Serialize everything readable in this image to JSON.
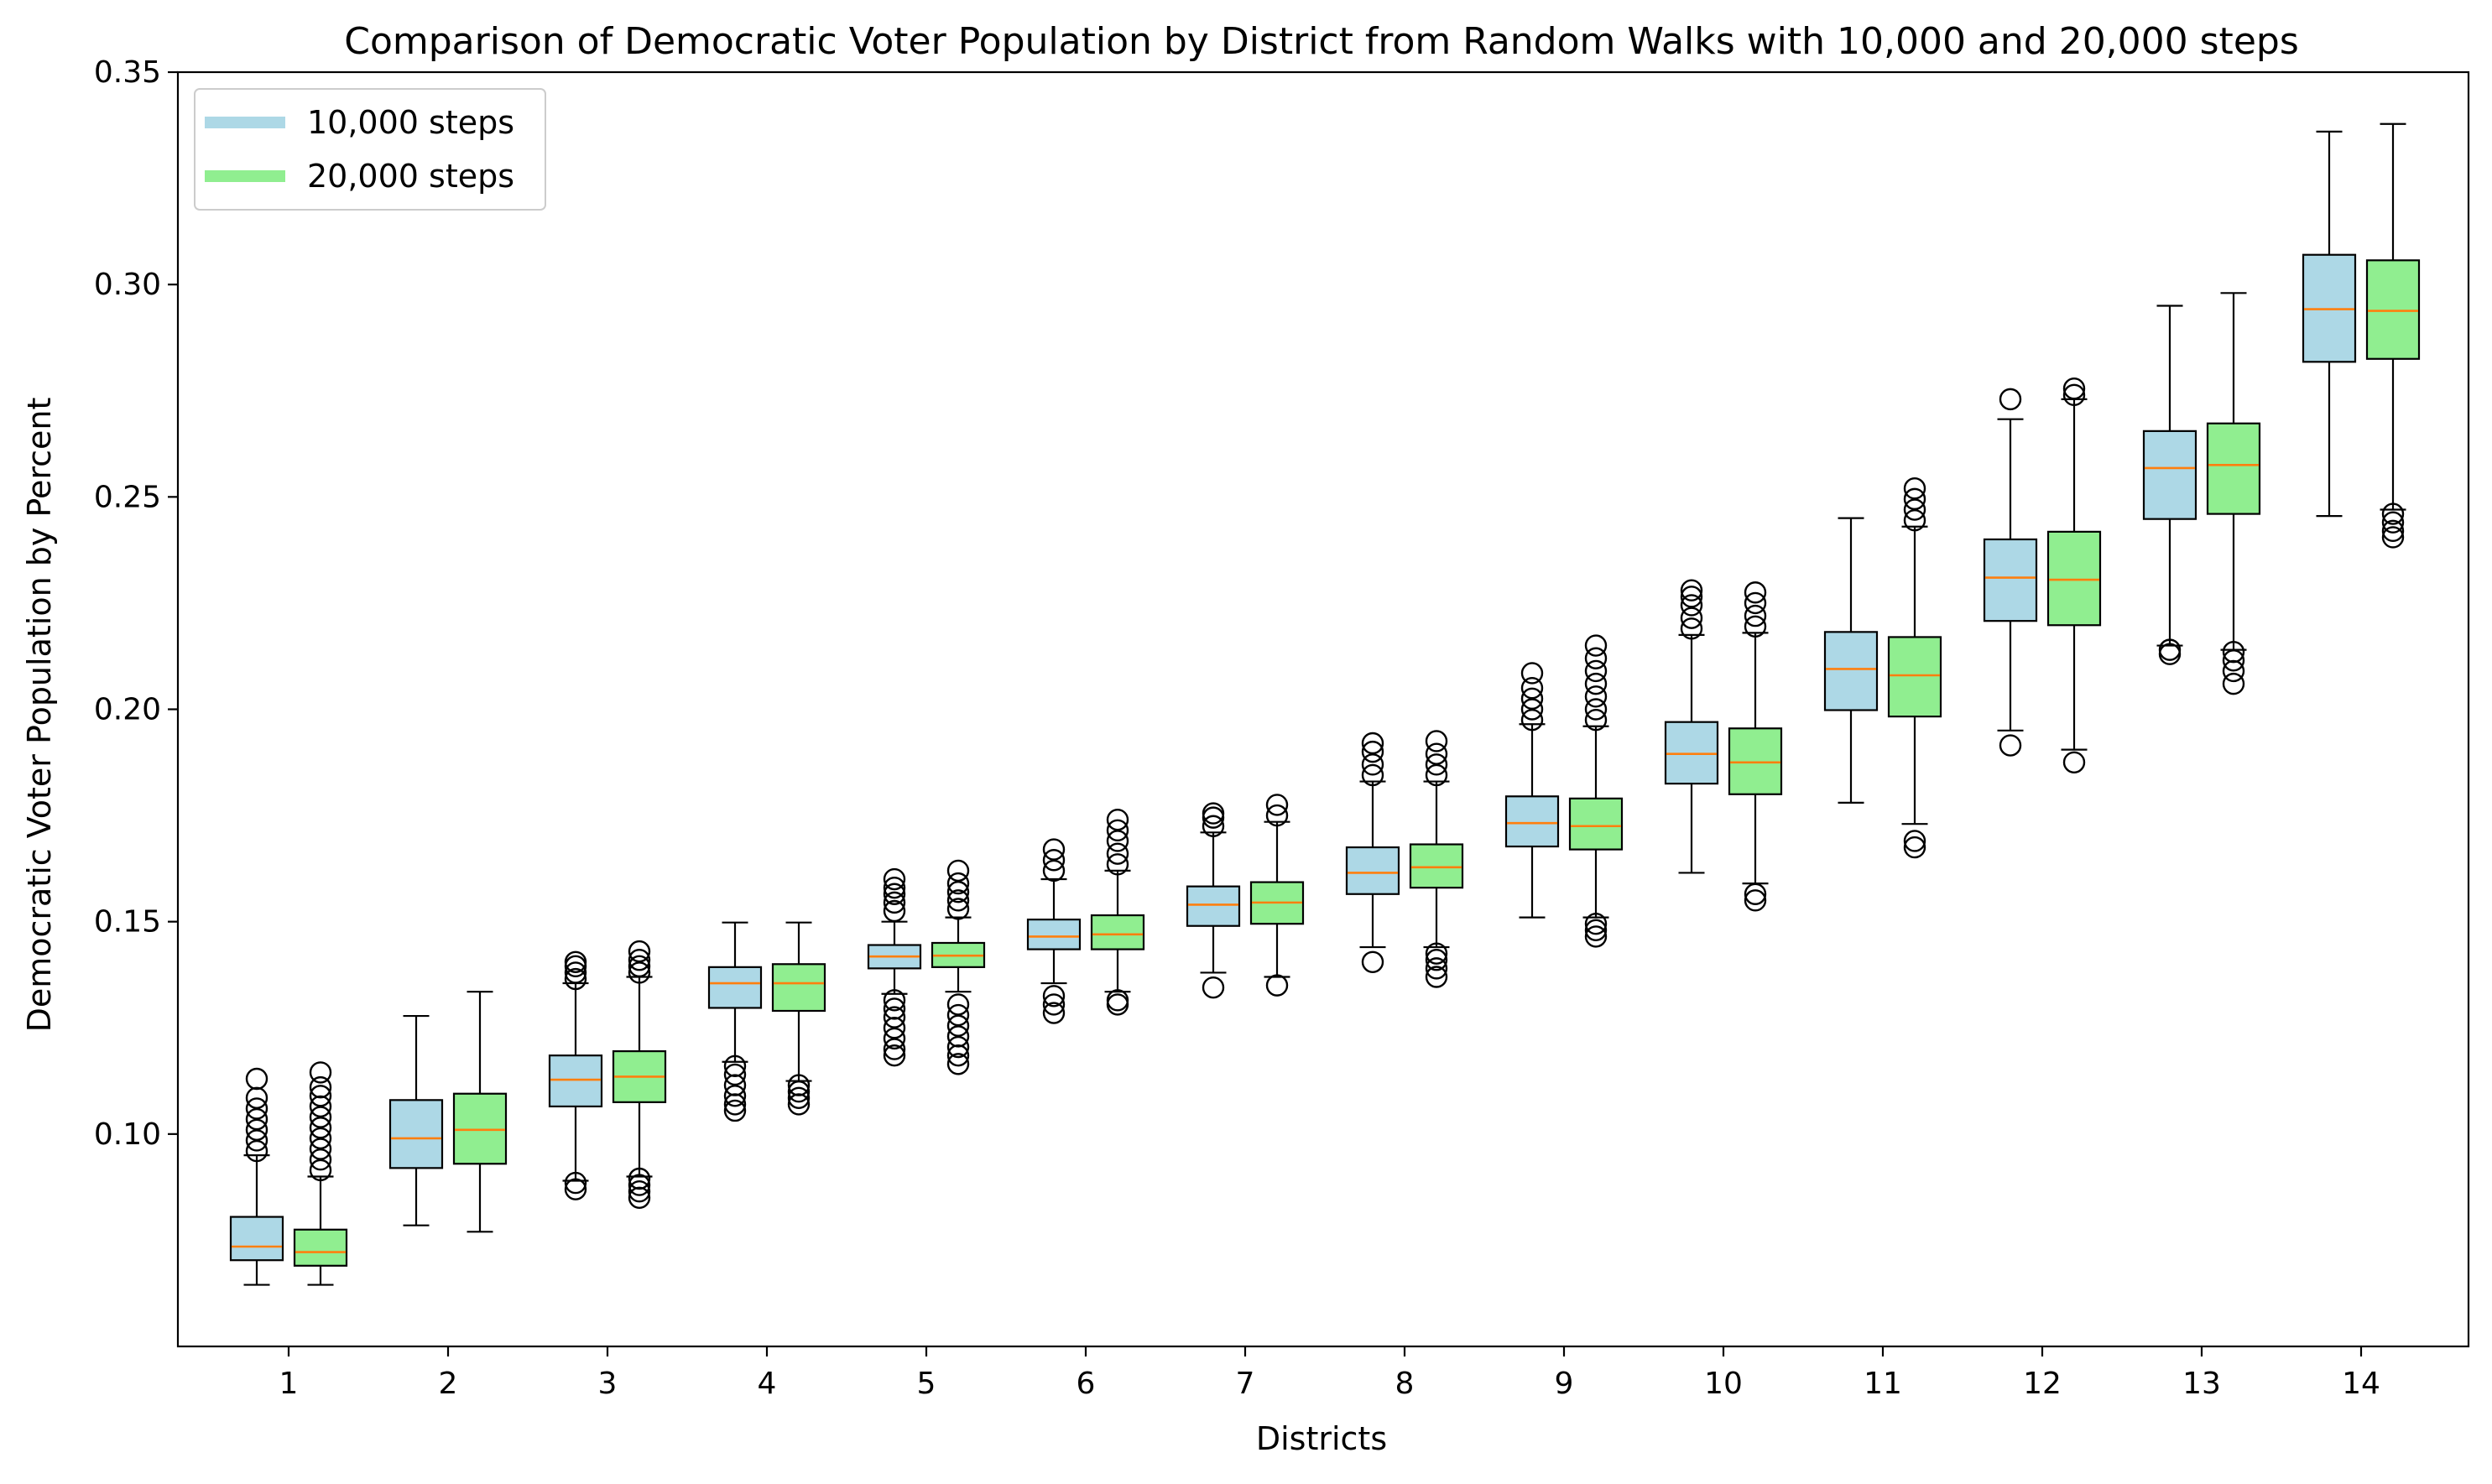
{
  "chart_data": {
    "type": "boxplot",
    "title": "Comparison of Democratic Voter Population by District from Random Walks with 10,000 and 20,000 steps",
    "xlabel": "Districts",
    "ylabel": "Democratic Voter Population by Percent",
    "ylim": [
      0.05,
      0.35
    ],
    "yticks": [
      "0.10",
      "0.15",
      "0.20",
      "0.25",
      "0.30",
      "0.35"
    ],
    "categories": [
      "1",
      "2",
      "3",
      "4",
      "5",
      "6",
      "7",
      "8",
      "9",
      "10",
      "11",
      "12",
      "13",
      "14"
    ],
    "grid": false,
    "legend_position": "top-left",
    "colors": {
      "box_outline": "#000000",
      "median": "#ff7f0e"
    },
    "series": [
      {
        "name": "10,000 steps",
        "color": "#add8e6",
        "boxes": [
          {
            "whisker_low": 0.0645,
            "q1": 0.0703,
            "median": 0.0735,
            "q3": 0.0805,
            "whisker_high": 0.095,
            "outliers_high": [
              0.096,
              0.0985,
              0.101,
              0.1035,
              0.106,
              0.1085,
              0.113
            ]
          },
          {
            "whisker_low": 0.0785,
            "q1": 0.092,
            "median": 0.099,
            "q3": 0.108,
            "whisker_high": 0.1278,
            "outliers_high": []
          },
          {
            "whisker_low": 0.089,
            "q1": 0.1065,
            "median": 0.1128,
            "q3": 0.1185,
            "whisker_high": 0.1355,
            "outliers_low": [
              0.087,
              0.0885
            ],
            "outliers_high": [
              0.1365,
              0.138,
              0.1395,
              0.1405
            ]
          },
          {
            "whisker_low": 0.117,
            "q1": 0.1297,
            "median": 0.1355,
            "q3": 0.1393,
            "whisker_high": 0.1498,
            "outliers_low": [
              0.1055,
              0.107,
              0.109,
              0.1115,
              0.114,
              0.116
            ]
          },
          {
            "whisker_low": 0.133,
            "q1": 0.139,
            "median": 0.1418,
            "q3": 0.1445,
            "whisker_high": 0.15,
            "outliers_low": [
              0.1185,
              0.12,
              0.1225,
              0.125,
              0.1275,
              0.1295,
              0.1315
            ],
            "outliers_high": [
              0.1525,
              0.1545,
              0.1565,
              0.158,
              0.16
            ]
          },
          {
            "whisker_low": 0.1355,
            "q1": 0.1435,
            "median": 0.1465,
            "q3": 0.1505,
            "whisker_high": 0.16,
            "outliers_low": [
              0.1285,
              0.1305,
              0.1325
            ],
            "outliers_high": [
              0.162,
              0.1645,
              0.167
            ]
          },
          {
            "whisker_low": 0.138,
            "q1": 0.149,
            "median": 0.154,
            "q3": 0.1583,
            "whisker_high": 0.171,
            "outliers_low": [
              0.1345
            ],
            "outliers_high": [
              0.1725,
              0.1745,
              0.1755
            ]
          },
          {
            "whisker_low": 0.144,
            "q1": 0.1565,
            "median": 0.1615,
            "q3": 0.1675,
            "whisker_high": 0.183,
            "outliers_low": [
              0.1405
            ],
            "outliers_high": [
              0.1845,
              0.187,
              0.19,
              0.192
            ]
          },
          {
            "whisker_low": 0.151,
            "q1": 0.1677,
            "median": 0.1732,
            "q3": 0.1795,
            "whisker_high": 0.1965,
            "outliers_high": [
              0.1975,
              0.2,
              0.2025,
              0.205,
              0.2085
            ]
          },
          {
            "whisker_low": 0.1615,
            "q1": 0.1825,
            "median": 0.1895,
            "q3": 0.197,
            "whisker_high": 0.2175,
            "outliers_high": [
              0.219,
              0.2215,
              0.2245,
              0.2265,
              0.228
            ]
          },
          {
            "whisker_low": 0.178,
            "q1": 0.1998,
            "median": 0.2095,
            "q3": 0.2182,
            "whisker_high": 0.245,
            "outliers_high": []
          },
          {
            "whisker_low": 0.195,
            "q1": 0.2208,
            "median": 0.231,
            "q3": 0.24,
            "whisker_high": 0.2683,
            "outliers_low": [
              0.1915
            ],
            "outliers_high": [
              0.273
            ]
          },
          {
            "whisker_low": 0.215,
            "q1": 0.2448,
            "median": 0.2568,
            "q3": 0.2655,
            "whisker_high": 0.295,
            "outliers_low": [
              0.213,
              0.214
            ],
            "outliers_high": []
          },
          {
            "whisker_low": 0.2455,
            "q1": 0.2818,
            "median": 0.2942,
            "q3": 0.307,
            "whisker_high": 0.336,
            "outliers_high": []
          }
        ]
      },
      {
        "name": "20,000 steps",
        "color": "#90ee90",
        "boxes": [
          {
            "whisker_low": 0.0645,
            "q1": 0.069,
            "median": 0.0722,
            "q3": 0.0775,
            "whisker_high": 0.09,
            "outliers_high": [
              0.0915,
              0.094,
              0.0965,
              0.099,
              0.1015,
              0.104,
              0.1065,
              0.109,
              0.111,
              0.1145
            ]
          },
          {
            "whisker_low": 0.077,
            "q1": 0.093,
            "median": 0.101,
            "q3": 0.1095,
            "whisker_high": 0.1335,
            "outliers_high": []
          },
          {
            "whisker_low": 0.09,
            "q1": 0.1075,
            "median": 0.1135,
            "q3": 0.1195,
            "whisker_high": 0.137,
            "outliers_low": [
              0.085,
              0.0865,
              0.088,
              0.0895
            ],
            "outliers_high": [
              0.138,
              0.1395,
              0.141,
              0.143
            ]
          },
          {
            "whisker_low": 0.1125,
            "q1": 0.129,
            "median": 0.1355,
            "q3": 0.14,
            "whisker_high": 0.1498,
            "outliers_low": [
              0.107,
              0.1085,
              0.11,
              0.1115
            ]
          },
          {
            "whisker_low": 0.1335,
            "q1": 0.1393,
            "median": 0.142,
            "q3": 0.145,
            "whisker_high": 0.151,
            "outliers_low": [
              0.1165,
              0.1185,
              0.1205,
              0.123,
              0.1255,
              0.128,
              0.1305
            ],
            "outliers_high": [
              0.153,
              0.155,
              0.157,
              0.159,
              0.162
            ]
          },
          {
            "whisker_low": 0.1335,
            "q1": 0.1435,
            "median": 0.147,
            "q3": 0.1515,
            "whisker_high": 0.162,
            "outliers_low": [
              0.1305,
              0.1315
            ],
            "outliers_high": [
              0.1635,
              0.166,
              0.169,
              0.1715,
              0.174
            ]
          },
          {
            "whisker_low": 0.137,
            "q1": 0.1495,
            "median": 0.1545,
            "q3": 0.1593,
            "whisker_high": 0.1735,
            "outliers_low": [
              0.135
            ],
            "outliers_high": [
              0.175,
              0.1775
            ]
          },
          {
            "whisker_low": 0.144,
            "q1": 0.158,
            "median": 0.1628,
            "q3": 0.1682,
            "whisker_high": 0.183,
            "outliers_low": [
              0.137,
              0.139,
              0.141,
              0.1425
            ],
            "outliers_high": [
              0.1845,
              0.187,
              0.1895,
              0.1925
            ]
          },
          {
            "whisker_low": 0.151,
            "q1": 0.167,
            "median": 0.1725,
            "q3": 0.179,
            "whisker_high": 0.196,
            "outliers_low": [
              0.1465,
              0.148,
              0.1495
            ],
            "outliers_high": [
              0.1975,
              0.2,
              0.203,
              0.206,
              0.209,
              0.212,
              0.215
            ]
          },
          {
            "whisker_low": 0.159,
            "q1": 0.18,
            "median": 0.1875,
            "q3": 0.1955,
            "whisker_high": 0.218,
            "outliers_low": [
              0.155,
              0.1565
            ],
            "outliers_high": [
              0.2195,
              0.222,
              0.225,
              0.2275
            ]
          },
          {
            "whisker_low": 0.173,
            "q1": 0.1983,
            "median": 0.208,
            "q3": 0.217,
            "whisker_high": 0.243,
            "outliers_low": [
              0.1675,
              0.169
            ],
            "outliers_high": [
              0.2445,
              0.247,
              0.2495,
              0.252
            ]
          },
          {
            "whisker_low": 0.1905,
            "q1": 0.2198,
            "median": 0.2305,
            "q3": 0.2418,
            "whisker_high": 0.273,
            "outliers_low": [
              0.1875
            ],
            "outliers_high": [
              0.274,
              0.2755
            ]
          },
          {
            "whisker_low": 0.214,
            "q1": 0.246,
            "median": 0.2575,
            "q3": 0.2673,
            "whisker_high": 0.298,
            "outliers_low": [
              0.206,
              0.209,
              0.2115,
              0.2135
            ],
            "outliers_high": []
          },
          {
            "whisker_low": 0.247,
            "q1": 0.2825,
            "median": 0.2938,
            "q3": 0.3057,
            "whisker_high": 0.3378,
            "outliers_low": [
              0.2405,
              0.242,
              0.244,
              0.246
            ],
            "outliers_high": []
          }
        ]
      }
    ]
  }
}
